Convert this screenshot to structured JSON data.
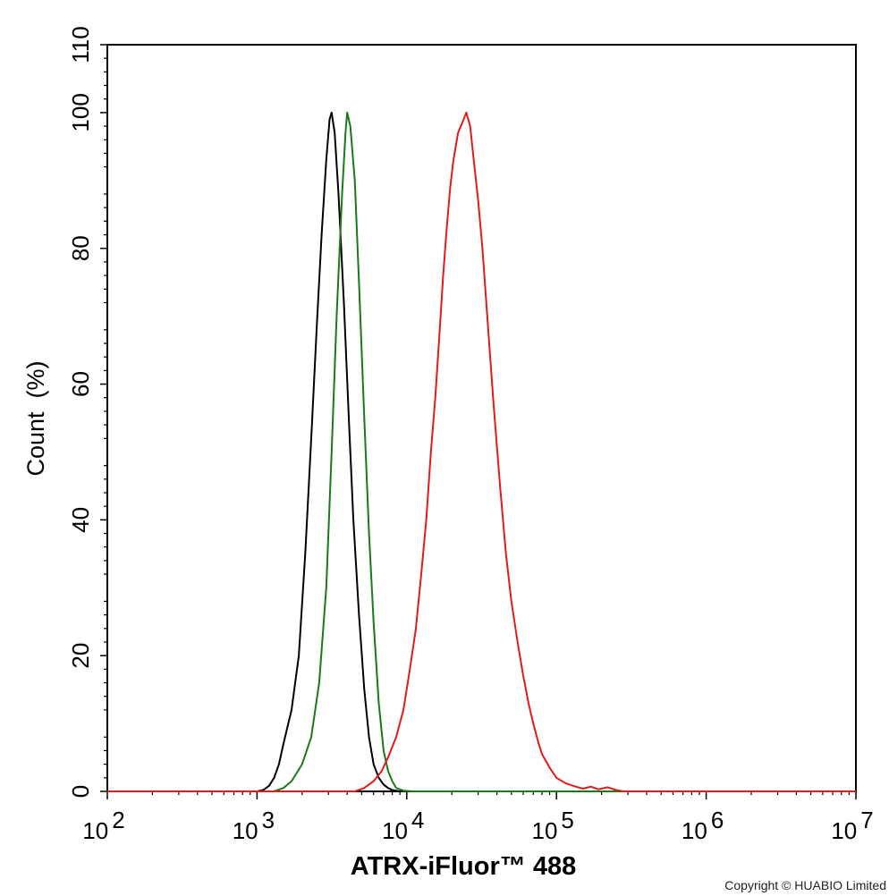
{
  "chart_data": {
    "type": "line",
    "xlabel": "ATRX-iFluor™ 488",
    "ylabel": "Count  (%)",
    "x_scale": "log",
    "xlim": [
      100,
      10000000
    ],
    "ylim": [
      0,
      110
    ],
    "x_ticks": [
      {
        "value": 100,
        "base": "10",
        "exp": "2"
      },
      {
        "value": 1000,
        "base": "10",
        "exp": "3"
      },
      {
        "value": 10000,
        "base": "10",
        "exp": "4"
      },
      {
        "value": 100000,
        "base": "10",
        "exp": "5"
      },
      {
        "value": 1000000,
        "base": "10",
        "exp": "6"
      },
      {
        "value": 10000000,
        "base": "10",
        "exp": "7"
      }
    ],
    "y_ticks": [
      {
        "value": 0,
        "label": "0"
      },
      {
        "value": 20,
        "label": "20"
      },
      {
        "value": 40,
        "label": "40"
      },
      {
        "value": 60,
        "label": "60"
      },
      {
        "value": 80,
        "label": "80"
      },
      {
        "value": 100,
        "label": "100"
      },
      {
        "value": 110,
        "label": "110"
      }
    ],
    "grid": false,
    "legend": "none",
    "series": [
      {
        "color": "#000000",
        "points": [
          [
            100,
            0
          ],
          [
            1000,
            0
          ],
          [
            1100,
            0.2
          ],
          [
            1200,
            0.8
          ],
          [
            1300,
            2
          ],
          [
            1400,
            4
          ],
          [
            1500,
            7
          ],
          [
            1700,
            12
          ],
          [
            1900,
            20
          ],
          [
            2100,
            35
          ],
          [
            2300,
            52
          ],
          [
            2500,
            68
          ],
          [
            2700,
            82
          ],
          [
            2900,
            93
          ],
          [
            3050,
            99
          ],
          [
            3150,
            100
          ],
          [
            3300,
            97
          ],
          [
            3500,
            88
          ],
          [
            3800,
            72
          ],
          [
            4100,
            55
          ],
          [
            4400,
            40
          ],
          [
            4800,
            26
          ],
          [
            5200,
            15
          ],
          [
            5600,
            8
          ],
          [
            6000,
            4
          ],
          [
            6500,
            2
          ],
          [
            7000,
            1
          ],
          [
            7500,
            0.5
          ],
          [
            8000,
            0.2
          ],
          [
            9000,
            0
          ],
          [
            10000000,
            0
          ]
        ]
      },
      {
        "color": "#1a7a1a",
        "points": [
          [
            100,
            0
          ],
          [
            1300,
            0
          ],
          [
            1500,
            0.5
          ],
          [
            1700,
            1.5
          ],
          [
            2000,
            4
          ],
          [
            2300,
            8
          ],
          [
            2600,
            16
          ],
          [
            2900,
            30
          ],
          [
            3150,
            50
          ],
          [
            3400,
            70
          ],
          [
            3700,
            88
          ],
          [
            3900,
            97
          ],
          [
            4000,
            100
          ],
          [
            4200,
            98
          ],
          [
            4500,
            90
          ],
          [
            4800,
            75
          ],
          [
            5200,
            55
          ],
          [
            5600,
            38
          ],
          [
            6000,
            25
          ],
          [
            6500,
            13
          ],
          [
            7000,
            6
          ],
          [
            7500,
            3
          ],
          [
            8000,
            1.5
          ],
          [
            8500,
            0.5
          ],
          [
            9500,
            0.1
          ],
          [
            11000,
            0
          ],
          [
            10000000,
            0
          ]
        ]
      },
      {
        "color": "#e31a1a",
        "points": [
          [
            100,
            0
          ],
          [
            4500,
            0
          ],
          [
            5200,
            0.5
          ],
          [
            6000,
            1.5
          ],
          [
            6800,
            3
          ],
          [
            7500,
            5
          ],
          [
            8500,
            8
          ],
          [
            9500,
            12
          ],
          [
            10500,
            18
          ],
          [
            11500,
            24
          ],
          [
            12500,
            32
          ],
          [
            13500,
            40
          ],
          [
            14500,
            50
          ],
          [
            15500,
            58
          ],
          [
            16500,
            67
          ],
          [
            17500,
            76
          ],
          [
            18500,
            83
          ],
          [
            19500,
            89
          ],
          [
            20500,
            93
          ],
          [
            22000,
            97
          ],
          [
            24000,
            99
          ],
          [
            25000,
            100
          ],
          [
            26500,
            98
          ],
          [
            28000,
            93
          ],
          [
            30000,
            87
          ],
          [
            32000,
            80
          ],
          [
            35000,
            68
          ],
          [
            38000,
            57
          ],
          [
            42000,
            45
          ],
          [
            46000,
            35
          ],
          [
            50000,
            28
          ],
          [
            55000,
            22
          ],
          [
            60000,
            17
          ],
          [
            65000,
            13
          ],
          [
            70000,
            10
          ],
          [
            75000,
            7.5
          ],
          [
            80000,
            5.5
          ],
          [
            90000,
            3.5
          ],
          [
            100000,
            2
          ],
          [
            115000,
            1.2
          ],
          [
            130000,
            0.8
          ],
          [
            150000,
            0.4
          ],
          [
            170000,
            0.7
          ],
          [
            190000,
            0.3
          ],
          [
            220000,
            0.6
          ],
          [
            250000,
            0.2
          ],
          [
            280000,
            0
          ],
          [
            10000000,
            0
          ]
        ]
      }
    ]
  },
  "copyright": "Copyright © HUABIO Limited"
}
